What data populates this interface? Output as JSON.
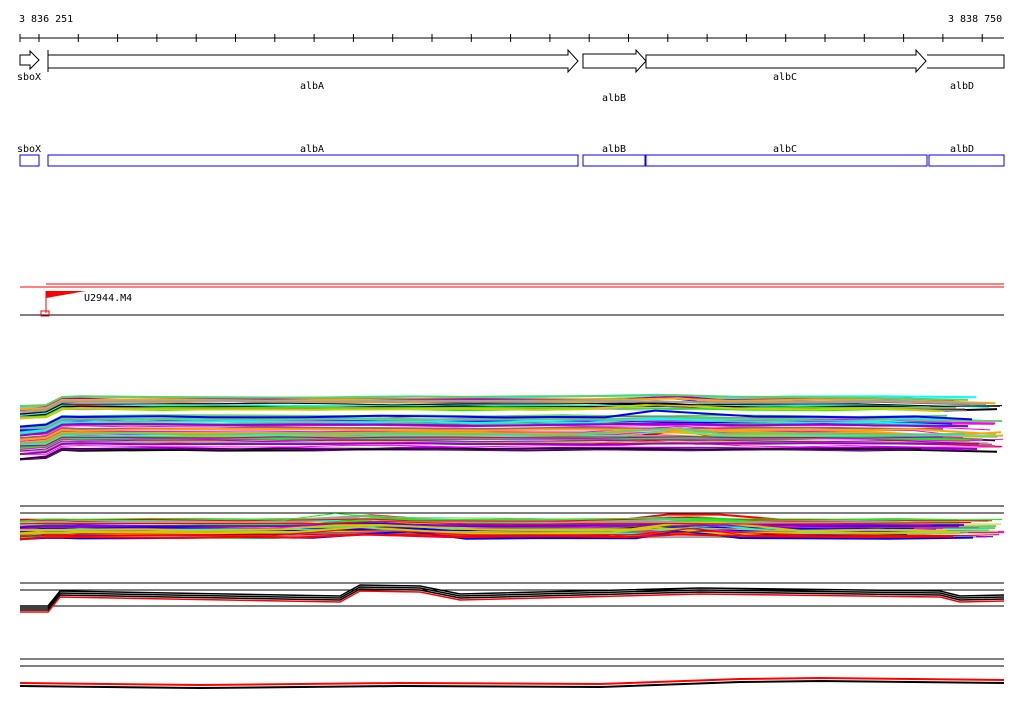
{
  "ruler": {
    "start_label": "3 836 251",
    "end_label": "3 838 750"
  },
  "genes": [
    {
      "name": "sboX",
      "strand": "+"
    },
    {
      "name": "albA",
      "strand": "+"
    },
    {
      "name": "albB",
      "strand": "+"
    },
    {
      "name": "albC",
      "strand": "+"
    },
    {
      "name": "albD",
      "strand": "+"
    }
  ],
  "annotation_track": {
    "color": "#0000ff"
  },
  "marker": {
    "label": "U2944.M4",
    "color": "#ff0000"
  },
  "track_colors": [
    "#ff0000",
    "#000000",
    "#00ffff",
    "#ff00ff",
    "#00ff00",
    "#ffa500",
    "#0000ff",
    "#a0a0a0",
    "#996666",
    "#cccc00",
    "#9900cc",
    "#66cc66"
  ]
}
